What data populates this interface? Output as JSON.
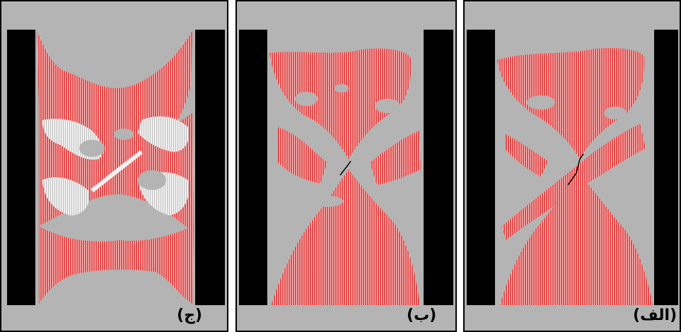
{
  "figure": {
    "panels": [
      {
        "id": "c",
        "label": "(ج)"
      },
      {
        "id": "b",
        "label": "(ب)"
      },
      {
        "id": "a",
        "label": "(الف)"
      }
    ]
  },
  "colors": {
    "specimen": "#b4b4b4",
    "platen": "#000000",
    "crack_zone": "#e34b4b",
    "hatch_light": "#f6d2d2",
    "open_crack": "#f2f2f2",
    "border": "#000000"
  }
}
